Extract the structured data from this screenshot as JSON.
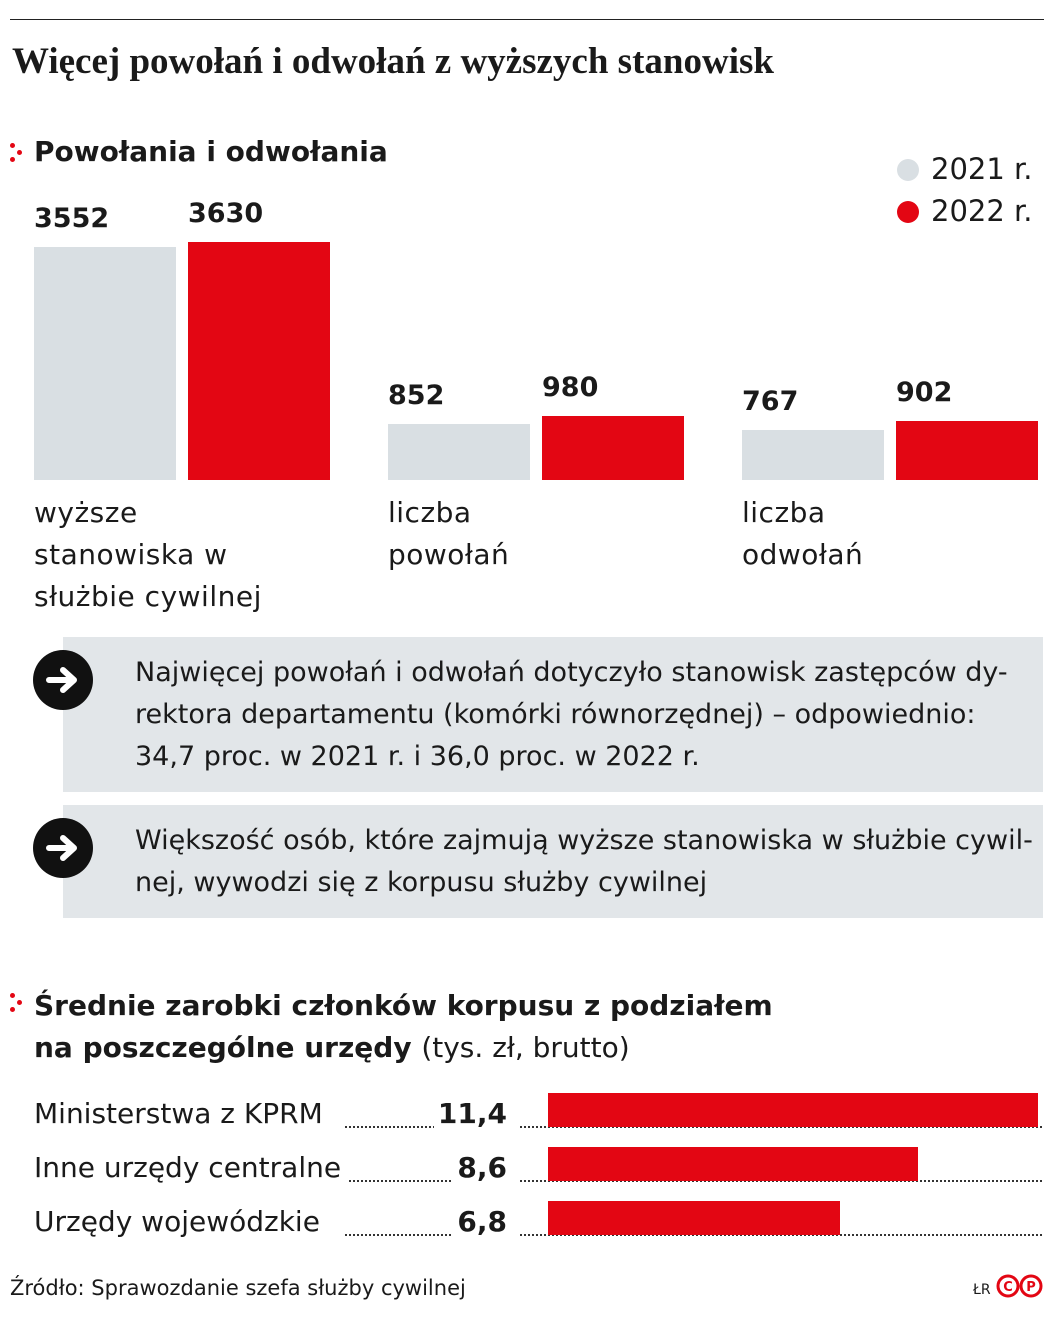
{
  "title": "Więcej powołań i odwołań z wyższych stanowisk",
  "chart_data": [
    {
      "type": "bar",
      "title": "Powołania i odwołania",
      "categories": [
        "wyższe stanowiska w służbie cywilnej",
        "liczba powołań",
        "liczba odwołań"
      ],
      "series": [
        {
          "name": "2021 r.",
          "color": "#d9dfe3",
          "values": [
            3552,
            852,
            767
          ]
        },
        {
          "name": "2022 r.",
          "color": "#e30613",
          "values": [
            3630,
            980,
            902
          ]
        }
      ],
      "legend": "top-right"
    },
    {
      "type": "hbar",
      "title": "Średnie zarobki członków korpusu z podziałem na poszczególne urzędy",
      "subtitle": "(tys. zł, brutto)",
      "categories": [
        "Ministerstwa z KPRM",
        "Inne urzędy centralne",
        "Urzędy wojewódzkie"
      ],
      "values": [
        11.4,
        8.6,
        6.8
      ],
      "value_labels": [
        "11,4",
        "8,6",
        "6,8"
      ],
      "color": "#e30613"
    }
  ],
  "notes": [
    [
      "Najwięcej powołań i odwołań dotyczyło stanowisk zastępców dy-",
      "rektora departamentu (komórki równorzędnej) – odpowiednio:",
      "34,7 proc. w 2021 r. i 36,0 proc. w 2022 r."
    ],
    [
      "Większość osób, które zajmują wyższe stanowiska w służbie cywil-",
      "nej, wywodzi się z korpusu służby cywilnej"
    ]
  ],
  "source": "Źródło: Sprawozdanie szefa służby cywilnej",
  "credit": "ŁR"
}
